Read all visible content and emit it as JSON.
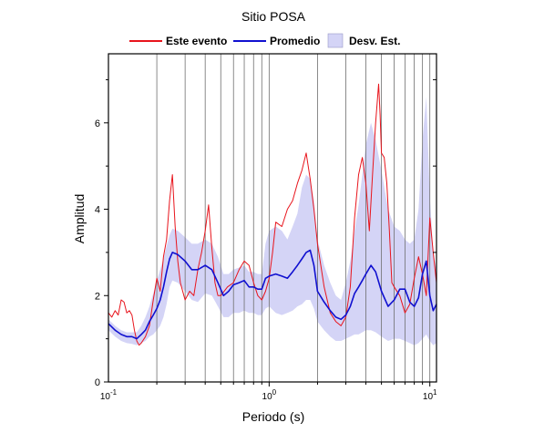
{
  "chart_data": {
    "type": "line",
    "title": "Sitio POSA",
    "xlabel": "Periodo (s)",
    "ylabel": "Amplitud",
    "x_scale": "log",
    "xlim": [
      0.1,
      11
    ],
    "ylim": [
      0,
      7.6
    ],
    "x_ticks": [
      {
        "value": 0.1,
        "mantissa": "10",
        "exponent": "-1"
      },
      {
        "value": 1,
        "mantissa": "10",
        "exponent": "0"
      },
      {
        "value": 10,
        "mantissa": "10",
        "exponent": "1"
      }
    ],
    "y_ticks": [
      {
        "value": 0,
        "label": "0"
      },
      {
        "value": 2,
        "label": "2"
      },
      {
        "value": 4,
        "label": "4"
      },
      {
        "value": 6,
        "label": "6"
      }
    ],
    "grid": "vertical log-decade lines",
    "legend_position": "top",
    "legend": [
      {
        "label": "Este evento",
        "kind": "line",
        "color": "#e8141c"
      },
      {
        "label": "Promedio",
        "kind": "line",
        "color": "#1010d0"
      },
      {
        "label": "Desv. Est.",
        "kind": "band",
        "color": "#d4d4f6"
      }
    ],
    "series": [
      {
        "name": "Este evento",
        "color": "#e8141c",
        "x": [
          0.1,
          0.105,
          0.11,
          0.115,
          0.12,
          0.125,
          0.13,
          0.135,
          0.14,
          0.145,
          0.15,
          0.155,
          0.16,
          0.17,
          0.18,
          0.19,
          0.2,
          0.21,
          0.22,
          0.23,
          0.24,
          0.25,
          0.26,
          0.27,
          0.28,
          0.3,
          0.32,
          0.34,
          0.36,
          0.38,
          0.4,
          0.42,
          0.44,
          0.46,
          0.48,
          0.5,
          0.55,
          0.6,
          0.65,
          0.7,
          0.75,
          0.8,
          0.85,
          0.9,
          0.95,
          1.0,
          1.05,
          1.1,
          1.2,
          1.3,
          1.4,
          1.5,
          1.6,
          1.7,
          1.8,
          1.9,
          2.0,
          2.2,
          2.4,
          2.6,
          2.8,
          3.0,
          3.2,
          3.4,
          3.6,
          3.8,
          4.0,
          4.2,
          4.4,
          4.6,
          4.8,
          4.9,
          5.0,
          5.2,
          5.4,
          5.6,
          5.8,
          6.0,
          6.5,
          7.0,
          7.5,
          8.0,
          8.5,
          9.0,
          9.5,
          10.0,
          10.5,
          11.0
        ],
        "values": [
          1.6,
          1.5,
          1.65,
          1.55,
          1.9,
          1.85,
          1.6,
          1.65,
          1.55,
          1.2,
          0.95,
          0.85,
          0.9,
          1.05,
          1.3,
          1.9,
          2.4,
          2.1,
          2.9,
          3.3,
          4.2,
          4.8,
          3.6,
          2.8,
          2.3,
          1.9,
          2.1,
          2.0,
          2.6,
          3.0,
          3.5,
          4.1,
          3.1,
          2.3,
          2.0,
          2.0,
          2.2,
          2.3,
          2.6,
          2.8,
          2.7,
          2.3,
          2.0,
          1.9,
          2.1,
          2.4,
          3.0,
          3.7,
          3.6,
          4.0,
          4.2,
          4.6,
          4.9,
          5.3,
          4.7,
          4.0,
          3.2,
          2.2,
          1.6,
          1.4,
          1.3,
          1.5,
          2.2,
          3.8,
          4.8,
          5.2,
          4.6,
          3.5,
          4.8,
          6.0,
          6.9,
          6.2,
          5.3,
          5.2,
          4.6,
          3.5,
          2.3,
          2.2,
          2.0,
          1.6,
          1.8,
          2.4,
          2.9,
          2.5,
          2.0,
          3.8,
          3.0,
          2.3
        ]
      },
      {
        "name": "Promedio",
        "color": "#1010d0",
        "x": [
          0.1,
          0.11,
          0.12,
          0.13,
          0.14,
          0.15,
          0.16,
          0.17,
          0.18,
          0.19,
          0.2,
          0.21,
          0.22,
          0.23,
          0.24,
          0.25,
          0.27,
          0.3,
          0.33,
          0.36,
          0.4,
          0.44,
          0.48,
          0.52,
          0.56,
          0.6,
          0.65,
          0.7,
          0.75,
          0.8,
          0.85,
          0.9,
          0.95,
          1.0,
          1.1,
          1.2,
          1.3,
          1.4,
          1.5,
          1.6,
          1.7,
          1.8,
          1.9,
          2.0,
          2.2,
          2.4,
          2.6,
          2.8,
          3.0,
          3.2,
          3.4,
          3.6,
          3.8,
          4.0,
          4.3,
          4.6,
          5.0,
          5.5,
          6.0,
          6.5,
          7.0,
          7.5,
          8.0,
          8.5,
          9.0,
          9.5,
          10.0,
          10.5,
          11.0
        ],
        "values": [
          1.35,
          1.2,
          1.1,
          1.05,
          1.05,
          1.0,
          1.1,
          1.2,
          1.4,
          1.55,
          1.7,
          1.9,
          2.2,
          2.55,
          2.85,
          3.0,
          2.95,
          2.8,
          2.6,
          2.6,
          2.7,
          2.6,
          2.3,
          2.0,
          2.1,
          2.25,
          2.3,
          2.35,
          2.2,
          2.2,
          2.15,
          2.15,
          2.4,
          2.45,
          2.5,
          2.45,
          2.4,
          2.55,
          2.7,
          2.85,
          3.0,
          3.05,
          2.7,
          2.1,
          1.85,
          1.65,
          1.5,
          1.45,
          1.55,
          1.75,
          2.05,
          2.2,
          2.35,
          2.5,
          2.7,
          2.55,
          2.1,
          1.75,
          1.9,
          2.15,
          2.15,
          1.85,
          1.75,
          1.95,
          2.5,
          2.8,
          2.0,
          1.65,
          1.8
        ]
      }
    ],
    "band": {
      "name": "Desv. Est.",
      "color": "#d4d4f6",
      "x": [
        0.1,
        0.11,
        0.12,
        0.13,
        0.14,
        0.15,
        0.16,
        0.17,
        0.18,
        0.19,
        0.2,
        0.21,
        0.22,
        0.23,
        0.24,
        0.25,
        0.27,
        0.3,
        0.33,
        0.36,
        0.4,
        0.44,
        0.48,
        0.52,
        0.56,
        0.6,
        0.65,
        0.7,
        0.75,
        0.8,
        0.85,
        0.9,
        0.95,
        1.0,
        1.1,
        1.2,
        1.3,
        1.4,
        1.5,
        1.6,
        1.7,
        1.8,
        1.9,
        2.0,
        2.2,
        2.4,
        2.6,
        2.8,
        3.0,
        3.2,
        3.4,
        3.6,
        3.8,
        4.0,
        4.3,
        4.6,
        5.0,
        5.5,
        6.0,
        6.5,
        7.0,
        7.5,
        8.0,
        8.5,
        9.0,
        9.5,
        10.0,
        10.5,
        11.0
      ],
      "upper": [
        1.45,
        1.3,
        1.2,
        1.15,
        1.15,
        1.15,
        1.3,
        1.5,
        1.75,
        2.05,
        2.35,
        2.6,
        2.85,
        3.15,
        3.4,
        3.55,
        3.5,
        3.35,
        3.2,
        3.2,
        3.3,
        3.2,
        2.9,
        2.5,
        2.5,
        2.6,
        2.65,
        2.7,
        2.55,
        2.55,
        2.5,
        2.5,
        3.2,
        3.5,
        3.6,
        3.5,
        3.3,
        3.6,
        3.9,
        4.5,
        4.8,
        4.7,
        4.2,
        3.3,
        2.7,
        2.3,
        2.0,
        1.9,
        2.3,
        2.8,
        3.5,
        4.1,
        4.8,
        5.5,
        6.0,
        5.6,
        4.9,
        4.0,
        3.6,
        3.5,
        3.3,
        3.2,
        3.3,
        4.0,
        5.6,
        6.6,
        4.3,
        3.0,
        2.6
      ],
      "lower": [
        1.2,
        1.05,
        0.95,
        0.9,
        0.88,
        0.85,
        0.9,
        0.95,
        1.05,
        1.1,
        1.2,
        1.3,
        1.5,
        1.8,
        2.2,
        2.35,
        2.3,
        2.1,
        1.9,
        1.85,
        2.05,
        2.0,
        1.75,
        1.5,
        1.5,
        1.6,
        1.6,
        1.65,
        1.6,
        1.6,
        1.55,
        1.55,
        1.7,
        1.75,
        1.6,
        1.55,
        1.6,
        1.65,
        1.75,
        1.8,
        1.9,
        1.9,
        1.7,
        1.4,
        1.2,
        1.05,
        0.95,
        0.95,
        1.0,
        1.05,
        1.1,
        1.1,
        1.15,
        1.2,
        1.2,
        1.15,
        1.05,
        0.95,
        1.0,
        1.0,
        0.95,
        0.9,
        0.85,
        0.9,
        1.0,
        1.1,
        0.95,
        0.85,
        0.9
      ]
    }
  }
}
